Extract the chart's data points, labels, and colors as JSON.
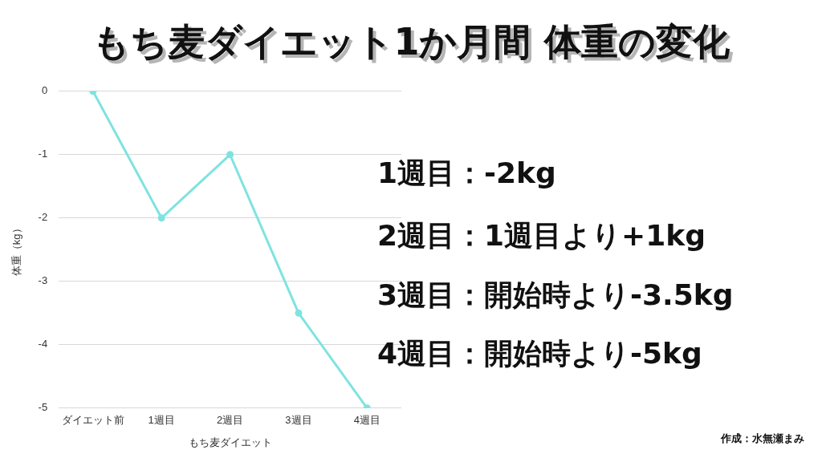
{
  "chart_data": {
    "type": "line",
    "title": "もち麦ダイエット1か月間 体重の変化",
    "xlabel": "もち麦ダイエット",
    "ylabel": "体重（kg）",
    "categories": [
      "ダイエット前",
      "1週目",
      "2週目",
      "3週目",
      "4週目"
    ],
    "values": [
      0,
      -2,
      -1,
      -3.5,
      -5
    ],
    "color": "#7fe3e0",
    "ylim": [
      -5,
      0
    ],
    "yticks": [
      -5,
      -4,
      -3,
      -2,
      -1,
      0
    ],
    "grid": "y",
    "marker": "circle",
    "line_style": "solid",
    "annotations": [
      "1週目：-2kg",
      "2週目：1週目より+1kg",
      "3週目：開始時より-3.5kg",
      "4週目：開始時より-5kg",
      "作成：水無瀬まみ"
    ]
  }
}
